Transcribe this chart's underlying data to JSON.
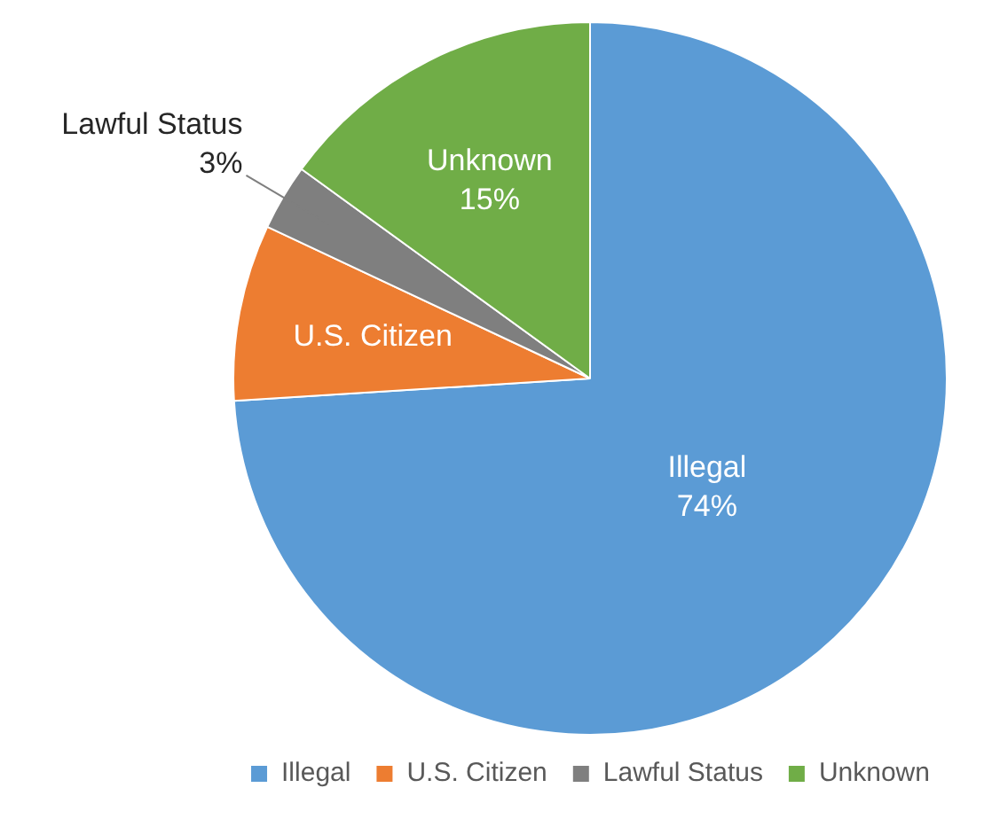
{
  "chart_data": {
    "type": "pie",
    "categories": [
      "Illegal",
      "U.S. Citizen",
      "Lawful Status",
      "Unknown"
    ],
    "values": [
      74,
      8,
      3,
      15
    ],
    "value_labels": [
      "74%",
      null,
      "3%",
      "15%"
    ],
    "colors": [
      "#5b9bd5",
      "#ed7d31",
      "#7f7f7f",
      "#70ad47"
    ],
    "legend": "bottom"
  }
}
